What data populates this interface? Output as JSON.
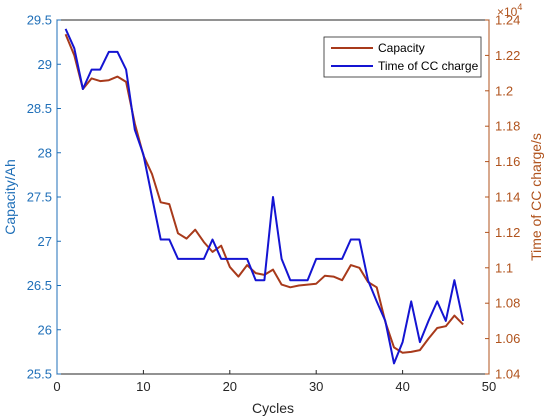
{
  "colors": {
    "capacity": "#a83a1b",
    "cc_time": "#1414d2",
    "left_axis": "#1f6fb8",
    "right_axis": "#b0531d",
    "x_axis": "#262626"
  },
  "chart_data": {
    "type": "line",
    "xlabel": "Cycles",
    "ylabel_left": "Capacity/Ah",
    "ylabel_right": "Time of CC charge/s",
    "right_exponent_base": "×10",
    "right_exponent_power": "4",
    "xlim": [
      0,
      50
    ],
    "ylim_left": [
      25.5,
      29.5
    ],
    "ylim_right": [
      10400,
      12400
    ],
    "xticks": [
      "0",
      "10",
      "20",
      "30",
      "40",
      "50"
    ],
    "yticks_left": [
      "25.5",
      "26",
      "26.5",
      "27",
      "27.5",
      "28",
      "28.5",
      "29",
      "29.5"
    ],
    "yticks_right": [
      "1.04",
      "1.06",
      "1.08",
      "1.1",
      "1.12",
      "1.14",
      "1.16",
      "1.18",
      "1.2",
      "1.22",
      "1.24"
    ],
    "legend_position": "top-right",
    "series": [
      {
        "name": "Capacity",
        "axis": "left",
        "x": [
          1,
          2,
          3,
          4,
          5,
          6,
          7,
          8,
          9,
          10,
          11,
          12,
          13,
          14,
          15,
          16,
          17,
          18,
          19,
          20,
          21,
          22,
          23,
          24,
          25,
          26,
          27,
          28,
          29,
          30,
          31,
          32,
          33,
          34,
          35,
          36,
          37,
          38,
          39,
          40,
          41,
          42,
          43,
          44,
          45,
          46,
          47
        ],
        "values": [
          29.34,
          29.1,
          28.72,
          28.84,
          28.81,
          28.82,
          28.86,
          28.8,
          28.33,
          27.97,
          27.76,
          27.44,
          27.42,
          27.09,
          27.03,
          27.13,
          26.99,
          26.88,
          26.95,
          26.71,
          26.6,
          26.73,
          26.64,
          26.62,
          26.68,
          26.51,
          26.48,
          26.5,
          26.51,
          26.52,
          26.61,
          26.6,
          26.56,
          26.73,
          26.7,
          26.54,
          26.48,
          26.09,
          25.8,
          25.74,
          25.75,
          25.77,
          25.9,
          26.02,
          26.04,
          26.16,
          26.06
        ]
      },
      {
        "name": "Time of CC charge",
        "axis": "right",
        "x": [
          1,
          2,
          3,
          4,
          5,
          6,
          7,
          8,
          9,
          10,
          11,
          12,
          13,
          14,
          15,
          16,
          17,
          18,
          19,
          20,
          21,
          22,
          23,
          24,
          25,
          26,
          27,
          28,
          29,
          30,
          31,
          32,
          33,
          34,
          35,
          36,
          37,
          38,
          39,
          40,
          41,
          42,
          43,
          44,
          45,
          46,
          47
        ],
        "values": [
          12350,
          12240,
          12010,
          12120,
          12120,
          12220,
          12220,
          12120,
          11780,
          11640,
          11400,
          11160,
          11160,
          11050,
          11050,
          11050,
          11050,
          11160,
          11050,
          11050,
          11050,
          11050,
          10930,
          10930,
          11400,
          11050,
          10930,
          10930,
          10930,
          11050,
          11050,
          11050,
          11050,
          11160,
          11160,
          10930,
          10810,
          10700,
          10460,
          10580,
          10810,
          10580,
          10700,
          10810,
          10700,
          10930,
          10700
        ]
      }
    ]
  }
}
